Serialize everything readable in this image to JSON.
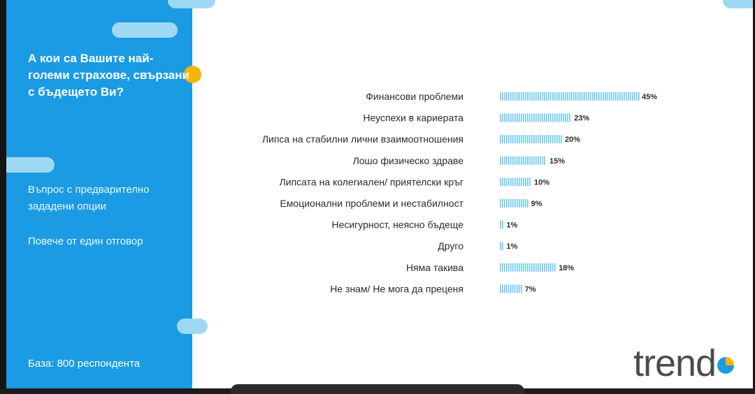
{
  "sidebar": {
    "question": "А кои са Вашите най-големи страхове, свързани с бъдещето Ви?",
    "note_1": "Въпрос с предварително зададени опции",
    "note_2": "Повече от един отговор",
    "base": "База: 800 респондента"
  },
  "brand": {
    "logo_text": "trend",
    "accent": "#1a9be3",
    "dot": "#f7b500",
    "bar": "#6cc6ee"
  },
  "chart_data": {
    "type": "bar",
    "orientation": "horizontal",
    "categories": [
      "Финансови проблеми",
      "Неуспехи в кариерата",
      "Липса на стабилни лични взаимоотношения",
      "Лошо физическо здраве",
      "Липсата на колегиален/ приятелски кръг",
      "Емоционални проблеми и нестабилност",
      "Несигурност, неясно бъдеще",
      "Друго",
      "Няма такива",
      "Не знам/ Не мога да преценя"
    ],
    "values": [
      45,
      23,
      20,
      15,
      10,
      9,
      1,
      1,
      18,
      7
    ],
    "value_labels": [
      "45%",
      "23%",
      "20%",
      "15%",
      "10%",
      "9%",
      "1%",
      "1%",
      "18%",
      "7%"
    ],
    "unit": "%",
    "grid": false,
    "legend": "none"
  }
}
